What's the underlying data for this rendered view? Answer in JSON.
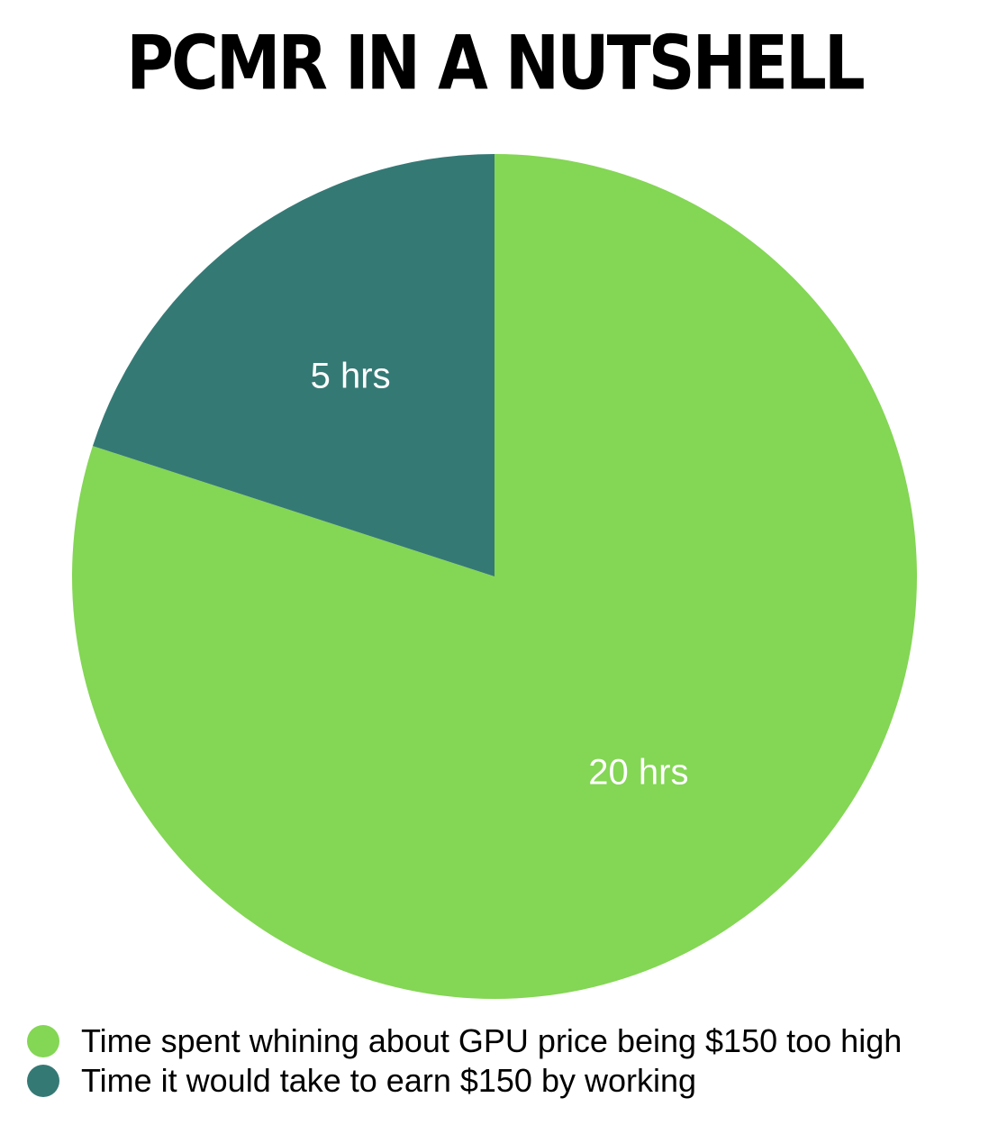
{
  "chart_data": {
    "type": "pie",
    "title": "PCMR IN A NUTSHELL",
    "slices": [
      {
        "label": "Time spent whining about GPU price being $150 too high",
        "value": 20,
        "data_label": "20 hrs",
        "color": "#84d655"
      },
      {
        "label": "Time it would take to earn $150 by working",
        "value": 5,
        "data_label": "5 hrs",
        "color": "#357975"
      }
    ],
    "legend_position": "bottom-left"
  }
}
